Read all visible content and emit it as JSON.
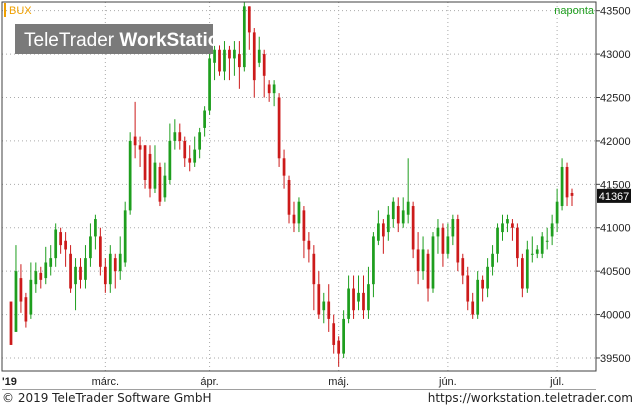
{
  "header": {
    "symbol": "BUX",
    "interval": "naponta",
    "watermark_regular": "TeleTrader ",
    "watermark_bold": "WorkStation"
  },
  "footer": {
    "copyright": "© 2019 TeleTrader Software GmbH",
    "url": "https://workstation.teletrader.com"
  },
  "colors": {
    "up": "#1e9e1e",
    "down": "#cc1a1a",
    "frame": "#404040",
    "grid": "#aaaaaa",
    "price_tag_bg": "#111111",
    "price_tag_fg": "#ffffff",
    "symbol_accent": "#f0a000",
    "interval_text": "#1e9e1e"
  },
  "chart_data": {
    "type": "candlestick",
    "y_ticks": [
      39500,
      40000,
      40500,
      41000,
      41500,
      42000,
      42500,
      43000,
      43500
    ],
    "ylim": [
      39350,
      43600
    ],
    "x_labels": [
      "'19",
      "márc.",
      "ápr.",
      "máj.",
      "jún.",
      "júl."
    ],
    "last_price_label": "41367",
    "grid": true,
    "candles": [
      [
        40150,
        39650,
        39700,
        39800
      ],
      [
        39800,
        40500,
        40800,
        40350
      ],
      [
        40420,
        40150,
        40580,
        40020
      ],
      [
        40200,
        39920,
        40250,
        39850
      ],
      [
        40000,
        40400,
        40600,
        39950
      ],
      [
        40350,
        40500,
        40600,
        40250
      ],
      [
        40480,
        40400,
        40550,
        40300
      ],
      [
        40420,
        40600,
        40780,
        40350
      ],
      [
        40550,
        40650,
        40800,
        40450
      ],
      [
        40650,
        40980,
        41050,
        40550
      ],
      [
        40950,
        40800,
        41000,
        40700
      ],
      [
        40850,
        40750,
        40950,
        40550
      ],
      [
        40700,
        40300,
        40800,
        40250
      ],
      [
        40350,
        40550,
        40650,
        40050
      ],
      [
        40550,
        40400,
        40650,
        40300
      ],
      [
        40400,
        40650,
        40800,
        40300
      ],
      [
        40650,
        40900,
        41050,
        40550
      ],
      [
        40900,
        41100,
        41150,
        40750
      ],
      [
        40900,
        40550,
        41000,
        40450
      ],
      [
        40550,
        40350,
        40650,
        40250
      ],
      [
        40350,
        40700,
        40800,
        40250
      ],
      [
        40650,
        40500,
        40700,
        40300
      ],
      [
        40500,
        40700,
        40900,
        40400
      ],
      [
        40600,
        41200,
        41300,
        40550
      ],
      [
        41200,
        42000,
        42100,
        41150
      ],
      [
        42050,
        41950,
        42450,
        41800
      ],
      [
        41950,
        41900,
        42050,
        41700
      ],
      [
        41950,
        41550,
        41950,
        41450
      ],
      [
        41850,
        41450,
        41950,
        41350
      ],
      [
        41450,
        41750,
        41950,
        41400
      ],
      [
        41700,
        41300,
        41750,
        41250
      ],
      [
        41350,
        41600,
        41750,
        41300
      ],
      [
        41550,
        42000,
        42200,
        41500
      ],
      [
        42000,
        42100,
        42250,
        41900
      ],
      [
        42100,
        42000,
        42200,
        41900
      ],
      [
        42000,
        41800,
        42050,
        41700
      ],
      [
        41800,
        41750,
        41950,
        41650
      ],
      [
        41750,
        41900,
        42050,
        41700
      ],
      [
        41900,
        42100,
        42150,
        41800
      ],
      [
        42150,
        42350,
        42400,
        42050
      ],
      [
        42350,
        42950,
        43050,
        42300
      ],
      [
        42900,
        43050,
        43100,
        42700
      ],
      [
        43050,
        42800,
        43100,
        42750
      ],
      [
        42800,
        43050,
        43150,
        42700
      ],
      [
        43050,
        42950,
        43100,
        42700
      ],
      [
        42950,
        43050,
        43150,
        42750
      ],
      [
        43000,
        42850,
        43150,
        42600
      ],
      [
        42850,
        43550,
        43600,
        42800
      ],
      [
        43550,
        43250,
        43550,
        43050
      ],
      [
        43250,
        42700,
        43300,
        42500
      ],
      [
        42900,
        43050,
        43200,
        42850
      ],
      [
        43000,
        42750,
        43050,
        42500
      ],
      [
        42650,
        42550,
        42700,
        42450
      ],
      [
        42550,
        42650,
        42700,
        42400
      ],
      [
        42500,
        41800,
        42550,
        41700
      ],
      [
        41800,
        41600,
        41900,
        41450
      ],
      [
        41550,
        41150,
        41600,
        41050
      ],
      [
        41150,
        41050,
        41300,
        40950
      ],
      [
        41050,
        41300,
        41350,
        40950
      ],
      [
        41200,
        40850,
        41250,
        40650
      ],
      [
        40850,
        40750,
        40950,
        40600
      ],
      [
        40700,
        40350,
        40800,
        40050
      ],
      [
        40350,
        40000,
        40500,
        39950
      ],
      [
        40050,
        40150,
        40250,
        39900
      ],
      [
        40150,
        39950,
        40350,
        39800
      ],
      [
        39900,
        39650,
        40000,
        39550
      ],
      [
        39700,
        39550,
        39750,
        39400
      ],
      [
        39550,
        39950,
        40050,
        39500
      ],
      [
        39950,
        40300,
        40450,
        39900
      ],
      [
        40300,
        40050,
        40450,
        39950
      ],
      [
        40150,
        40250,
        40450,
        40050
      ],
      [
        40250,
        40050,
        40450,
        39950
      ],
      [
        40050,
        40350,
        40550,
        39950
      ],
      [
        40350,
        40900,
        40950,
        40200
      ],
      [
        40850,
        41050,
        41200,
        40800
      ],
      [
        41050,
        40900,
        41100,
        40700
      ],
      [
        40950,
        41150,
        41250,
        40850
      ],
      [
        41100,
        41300,
        41350,
        41000
      ],
      [
        41250,
        41050,
        41350,
        40950
      ],
      [
        41050,
        41200,
        41350,
        41000
      ],
      [
        41150,
        41300,
        41800,
        41050
      ],
      [
        41250,
        40750,
        41300,
        40650
      ],
      [
        40750,
        40500,
        40950,
        40350
      ],
      [
        40500,
        40750,
        40900,
        40400
      ],
      [
        40700,
        40300,
        40750,
        40150
      ],
      [
        40300,
        40900,
        40950,
        40250
      ],
      [
        40900,
        41000,
        41100,
        40700
      ],
      [
        41000,
        40700,
        41050,
        40550
      ],
      [
        40700,
        40900,
        41050,
        40650
      ],
      [
        40900,
        41100,
        41150,
        40800
      ],
      [
        41100,
        40600,
        41150,
        40500
      ],
      [
        40650,
        40450,
        40700,
        40350
      ],
      [
        40450,
        40150,
        40550,
        40050
      ],
      [
        40150,
        40000,
        40250,
        39950
      ],
      [
        40000,
        40400,
        40500,
        39950
      ],
      [
        40400,
        40300,
        40450,
        40150
      ],
      [
        40300,
        40550,
        40650,
        40200
      ],
      [
        40550,
        40700,
        40800,
        40450
      ],
      [
        40700,
        41000,
        41050,
        40600
      ],
      [
        40950,
        41050,
        41150,
        40850
      ],
      [
        41050,
        41100,
        41150,
        40950
      ],
      [
        41050,
        41000,
        41100,
        40850
      ],
      [
        41000,
        40650,
        41050,
        40550
      ],
      [
        40650,
        40300,
        40700,
        40200
      ],
      [
        40300,
        40750,
        40850,
        40250
      ],
      [
        40700,
        40700,
        40900,
        40600
      ],
      [
        40700,
        40750,
        40800,
        40650
      ],
      [
        40700,
        40900,
        40950,
        40650
      ],
      [
        40850,
        40850,
        41000,
        40750
      ],
      [
        40900,
        41050,
        41150,
        40800
      ],
      [
        41050,
        41300,
        41450,
        40950
      ],
      [
        41250,
        41700,
        41800,
        41200
      ],
      [
        41700,
        41350,
        41750,
        41250
      ],
      [
        41400,
        41367,
        41450,
        41250
      ]
    ]
  }
}
